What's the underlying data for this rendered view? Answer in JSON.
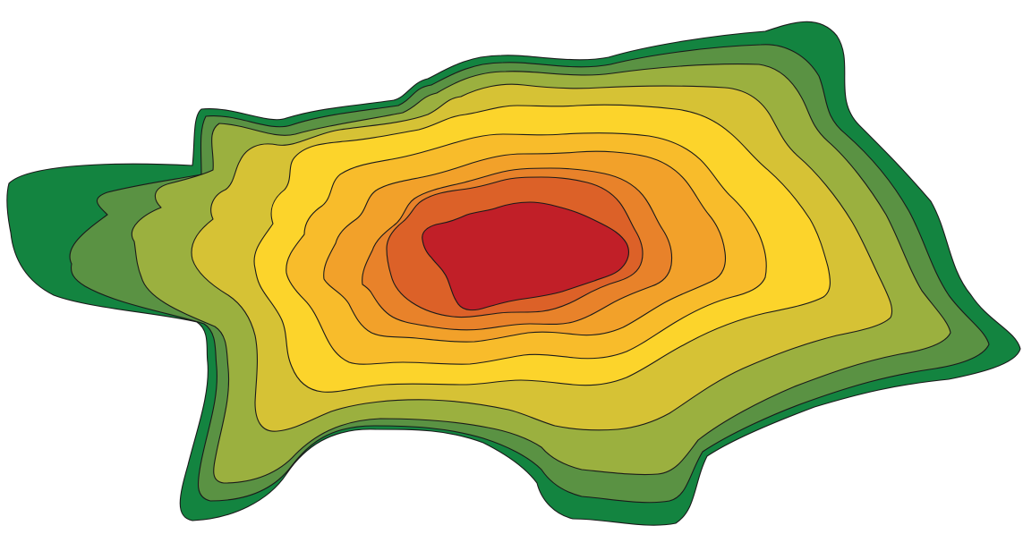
{
  "illustration": {
    "kind": "filled contour map",
    "levels": 10,
    "colors": [
      "#138440",
      "#5a9243",
      "#9bb03f",
      "#d6c235",
      "#fcd42b",
      "#f8bc2b",
      "#f2a12a",
      "#e8822a",
      "#dc6128",
      "#c11f28"
    ],
    "outline_color": "#1a1a1a",
    "background": "#ffffff"
  }
}
